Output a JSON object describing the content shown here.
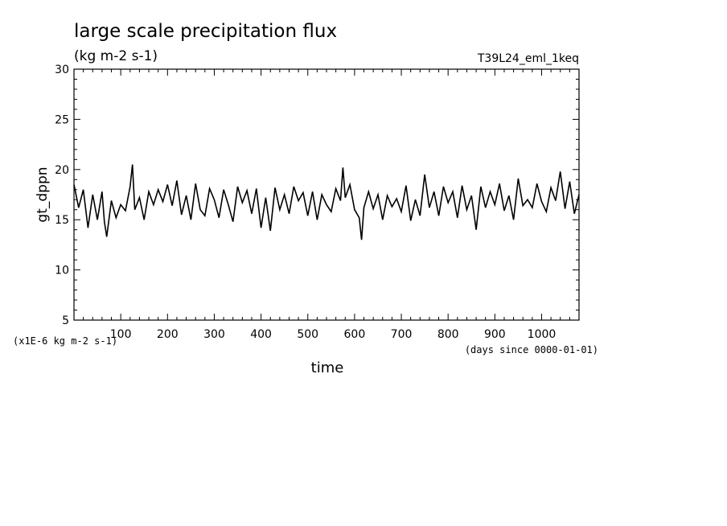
{
  "chart_data": {
    "type": "line",
    "title": "large scale precipitation flux",
    "subtitle": "(kg m-2 s-1)",
    "run_label": "T39L24_eml_1keq",
    "xlabel": "time",
    "xunit": "(days since 0000-01-01)",
    "ylabel": "gt_dppn",
    "yunit": "(x1E-6 kg m-2 s-1)",
    "xlim": [
      0,
      1080
    ],
    "ylim": [
      5,
      30
    ],
    "xticks": [
      100,
      200,
      300,
      400,
      500,
      600,
      700,
      800,
      900,
      1000
    ],
    "yticks": [
      5,
      10,
      15,
      20,
      25,
      30
    ],
    "grid": false,
    "series": [
      {
        "x": [
          0,
          10,
          20,
          30,
          40,
          50,
          60,
          65,
          70,
          80,
          90,
          100,
          110,
          120,
          125,
          130,
          140,
          150,
          160,
          170,
          180,
          190,
          200,
          210,
          220,
          230,
          240,
          250,
          260,
          270,
          280,
          290,
          300,
          310,
          320,
          330,
          340,
          350,
          360,
          370,
          380,
          390,
          400,
          410,
          420,
          430,
          440,
          450,
          460,
          470,
          480,
          490,
          500,
          510,
          520,
          530,
          540,
          550,
          560,
          570,
          575,
          580,
          590,
          600,
          610,
          615,
          620,
          630,
          640,
          650,
          660,
          670,
          680,
          690,
          700,
          710,
          720,
          730,
          740,
          750,
          760,
          770,
          780,
          790,
          800,
          810,
          820,
          830,
          840,
          850,
          860,
          870,
          880,
          890,
          900,
          910,
          920,
          930,
          940,
          950,
          960,
          970,
          980,
          990,
          1000,
          1010,
          1020,
          1030,
          1040,
          1050,
          1060,
          1070,
          1080
        ],
        "y": [
          18.5,
          16.2,
          18.0,
          14.2,
          17.5,
          15.0,
          17.8,
          14.8,
          13.3,
          16.9,
          15.2,
          16.5,
          15.9,
          18.3,
          20.5,
          16.0,
          17.2,
          15.0,
          17.8,
          16.5,
          18.0,
          16.8,
          18.5,
          16.4,
          18.9,
          15.5,
          17.4,
          15.0,
          18.6,
          16.0,
          15.4,
          18.1,
          17.0,
          15.2,
          18.0,
          16.5,
          14.8,
          18.3,
          16.7,
          17.9,
          15.6,
          18.1,
          14.2,
          17.2,
          13.9,
          18.2,
          16.0,
          17.5,
          15.6,
          18.3,
          16.9,
          17.7,
          15.4,
          17.8,
          15.0,
          17.5,
          16.5,
          15.8,
          18.1,
          16.9,
          20.2,
          17.2,
          18.5,
          16.0,
          15.2,
          13.0,
          16.2,
          17.8,
          16.1,
          17.5,
          15.0,
          17.4,
          16.3,
          17.1,
          15.8,
          18.4,
          14.9,
          17.0,
          15.4,
          19.5,
          16.2,
          17.8,
          15.4,
          18.3,
          16.7,
          17.8,
          15.2,
          18.4,
          16.0,
          17.4,
          14.0,
          18.3,
          16.2,
          17.8,
          16.5,
          18.6,
          15.9,
          17.4,
          15.0,
          19.1,
          16.4,
          17.0,
          16.2,
          18.6,
          16.8,
          15.8,
          18.2,
          16.9,
          19.8,
          16.1,
          18.8,
          15.6,
          17.5
        ]
      }
    ]
  }
}
